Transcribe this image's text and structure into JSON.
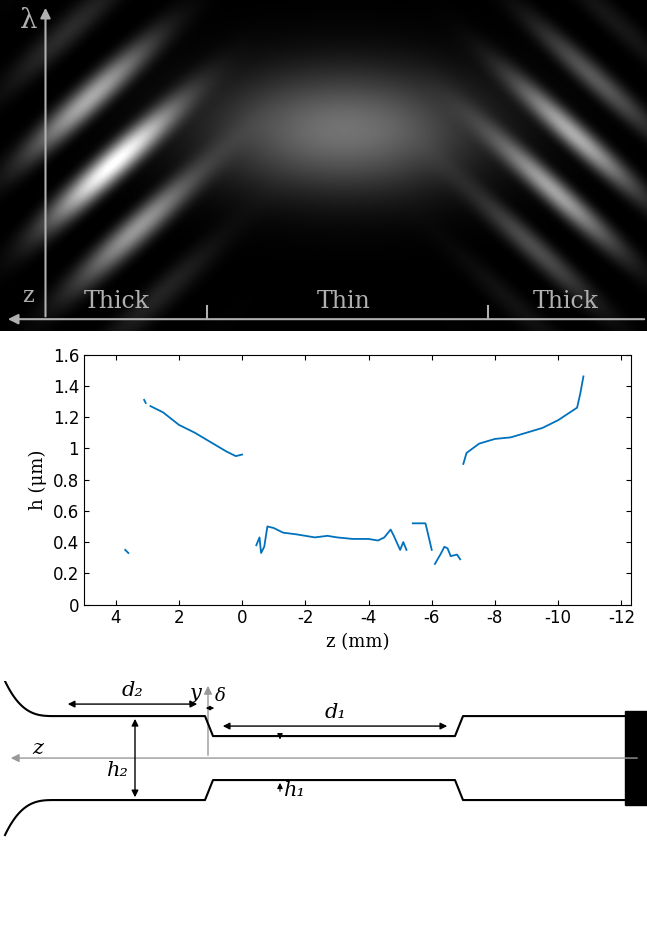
{
  "top_image": {
    "axis_labels": {
      "vertical": "λ",
      "horizontal": "z"
    },
    "regions": [
      "Thick",
      "Thin",
      "Thick"
    ]
  },
  "chart_data": {
    "type": "line",
    "xlabel": "z (mm)",
    "ylabel": "h (μm)",
    "xlim": [
      5,
      -12.3
    ],
    "ylim": [
      0,
      1.6
    ],
    "xticks": [
      4,
      2,
      0,
      -2,
      -4,
      -6,
      -8,
      -10,
      -12
    ],
    "yticks": [
      0,
      0.2,
      0.4,
      0.6,
      0.8,
      1,
      1.2,
      1.4,
      1.6
    ],
    "grid": false,
    "series": [
      {
        "color": "#0072bd",
        "line_style": "solid",
        "x": [
          3.1,
          3.05,
          null,
          2.9,
          2.5,
          2.0,
          1.5,
          1.0,
          0.5,
          0.2,
          0.0,
          null,
          3.7,
          3.6,
          null,
          -0.45,
          -0.55,
          -0.6,
          -0.7,
          -0.8,
          -1.0,
          -1.3,
          -1.7,
          -2.0,
          -2.3,
          -2.7,
          -3.0,
          -3.5,
          -4.0,
          -4.3,
          -4.5,
          -4.7,
          -4.8,
          -5.0,
          -5.1,
          -5.2,
          null,
          -5.4,
          -5.8,
          -5.85,
          -6.0,
          null,
          -6.1,
          -6.3,
          -6.4,
          -6.5,
          -6.6,
          -6.8,
          -6.9,
          null,
          -7.0,
          -7.1,
          -7.5,
          -8.0,
          -8.5,
          -9.0,
          -9.5,
          -10.0,
          -10.3,
          -10.6,
          -10.7,
          -10.8
        ],
        "values": [
          1.31,
          1.29,
          null,
          1.27,
          1.23,
          1.15,
          1.1,
          1.04,
          0.98,
          0.95,
          0.96,
          null,
          0.35,
          0.33,
          null,
          0.38,
          0.43,
          0.33,
          0.37,
          0.5,
          0.49,
          0.46,
          0.45,
          0.44,
          0.43,
          0.44,
          0.43,
          0.42,
          0.42,
          0.41,
          0.43,
          0.48,
          0.44,
          0.35,
          0.4,
          0.35,
          null,
          0.52,
          0.52,
          0.48,
          0.35,
          null,
          0.26,
          0.33,
          0.37,
          0.36,
          0.31,
          0.32,
          0.29,
          null,
          0.9,
          0.97,
          1.03,
          1.06,
          1.07,
          1.1,
          1.13,
          1.18,
          1.22,
          1.26,
          1.35,
          1.46
        ]
      }
    ]
  },
  "diagram": {
    "labels": {
      "d2": "d₂",
      "delta": "δ",
      "d1": "d₁",
      "y": "y",
      "h2": "h₂",
      "z": "z",
      "h1": "h₁"
    }
  }
}
